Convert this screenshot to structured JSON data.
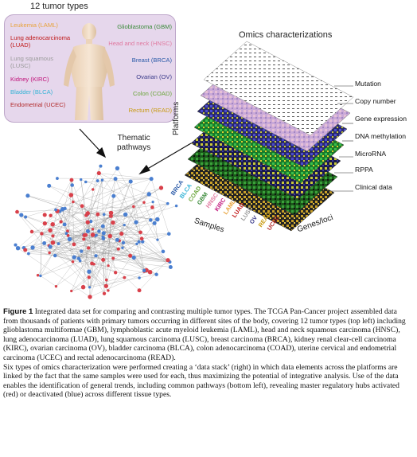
{
  "tumor_panel": {
    "title": "12 tumor types",
    "left_labels": [
      {
        "text": "Leukemia (LAML)",
        "color": "#e8a33c"
      },
      {
        "text": "Lung adenocarcinoma\n(LUAD)",
        "color": "#c01818"
      },
      {
        "text": "Lung squamous\n(LUSC)",
        "color": "#9b9b9b"
      },
      {
        "text": "Kidney (KIRC)",
        "color": "#c0127a"
      },
      {
        "text": "Bladder (BLCA)",
        "color": "#35b4d6"
      },
      {
        "text": "Endometrial (UCEC)",
        "color": "#b22a2a"
      }
    ],
    "right_labels": [
      {
        "text": "Glioblastoma (GBM)",
        "color": "#3a8a3a"
      },
      {
        "text": "Head and neck (HNSC)",
        "color": "#e07aa0"
      },
      {
        "text": "Breast (BRCA)",
        "color": "#2a5aa8"
      },
      {
        "text": "Ovarian (OV)",
        "color": "#3a3a8a"
      },
      {
        "text": "Colon (COAD)",
        "color": "#6aa53a"
      },
      {
        "text": "Rectum (READ)",
        "color": "#c89a10"
      }
    ]
  },
  "omics": {
    "title": "Omics characterizations",
    "platforms_label": "Platforms",
    "layers": [
      "Mutation",
      "Copy number",
      "Gene expression",
      "DNA methylation",
      "MicroRNA",
      "RPPA",
      "Clinical data"
    ],
    "samples_label": "Samples",
    "genes_label": "Genes/loci",
    "sample_codes": [
      {
        "text": "BRCA",
        "color": "#2a5aa8"
      },
      {
        "text": "BLCA",
        "color": "#35b4d6"
      },
      {
        "text": "COAD",
        "color": "#6aa53a"
      },
      {
        "text": "GBM",
        "color": "#3a8a3a"
      },
      {
        "text": "HNSC",
        "color": "#e07aa0"
      },
      {
        "text": "KIRC",
        "color": "#c0127a"
      },
      {
        "text": "LAML",
        "color": "#e8a33c"
      },
      {
        "text": "LUAD",
        "color": "#c01818"
      },
      {
        "text": "LUSC",
        "color": "#9b9b9b"
      },
      {
        "text": "OV",
        "color": "#3a3a8a"
      },
      {
        "text": "READ",
        "color": "#c89a10"
      },
      {
        "text": "UCEC",
        "color": "#b22a2a"
      }
    ]
  },
  "pathways": {
    "label": "Thematic\npathways"
  },
  "caption": {
    "figure_label": "Figure 1",
    "text": "  Integrated data set for comparing and contrasting multiple tumor types. The TCGA Pan-Cancer project assembled data from thousands of patients with primary tumors occurring in different sites of the body, covering 12 tumor types (top left) including glioblastoma multiformae (GBM), lymphoblastic acute myeloid leukemia (LAML), head and neck squamous carcinoma (HNSC), lung adenocarcinoma (LUAD), lung squamous carcinoma (LUSC), breast carcinoma (BRCA), kidney renal clear-cell carcinoma (KIRC), ovarian carcinoma (OV), bladder carcinoma (BLCA), colon adenocarcinoma (COAD), uterine cervical and endometrial carcinoma (UCEC) and rectal adenocarcinoma (READ).",
    "text2": "Six types of omics characterization were performed creating a ‘data stack’ (right) in which data elements across the platforms are linked by the fact that the same samples were used for each, thus maximizing the potential of integrative analysis. Use of the data enables the identification of general trends, including common pathways (bottom left), revealing master regulatory hubs activated (red) or deactivated (blue) across different tissue types."
  }
}
